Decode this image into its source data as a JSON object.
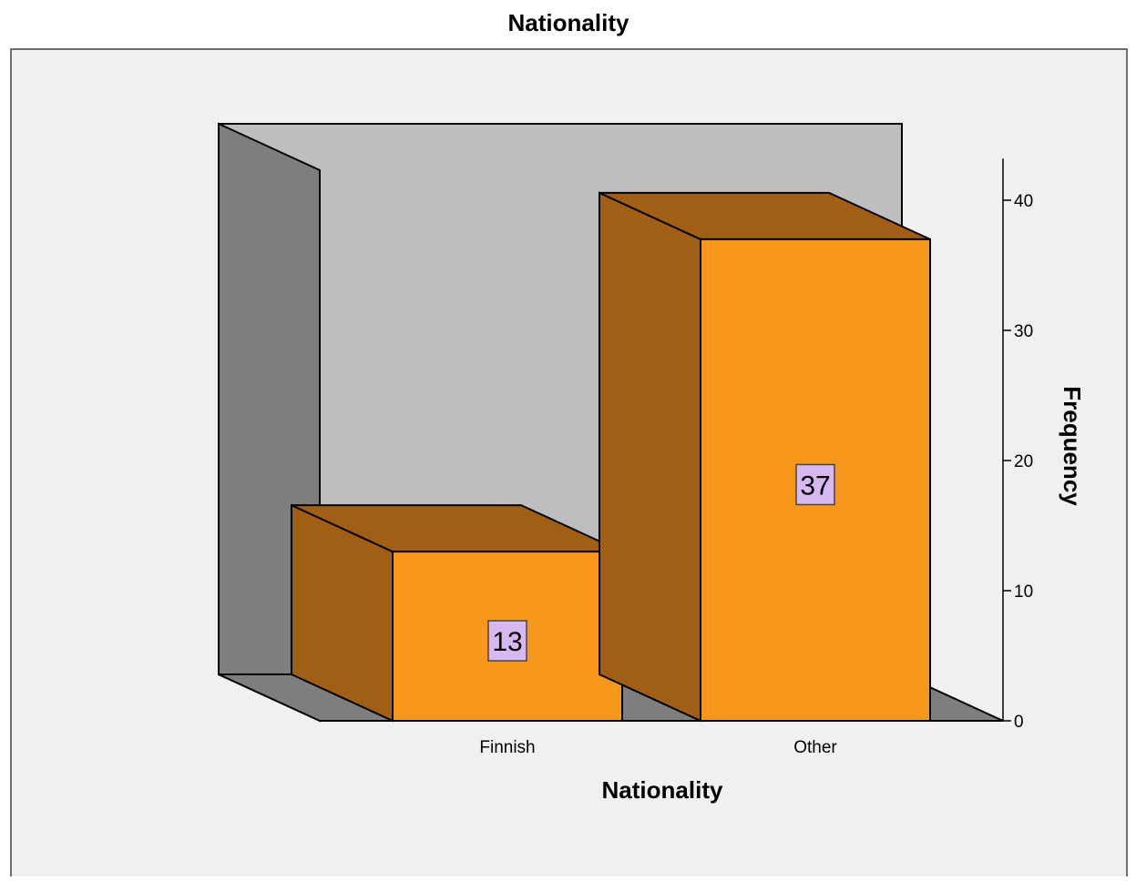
{
  "chart_data": {
    "type": "bar",
    "title": "Nationality",
    "xlabel": "Nationality",
    "ylabel": "Frequency",
    "categories": [
      "Finnish",
      "Other"
    ],
    "values": [
      13,
      37
    ],
    "data_labels": [
      "13",
      "37"
    ],
    "ylim": [
      0,
      42
    ],
    "yticks": [
      0,
      10,
      20,
      30,
      40
    ],
    "ytick_labels": [
      "0",
      "10",
      "20",
      "30",
      "40"
    ],
    "three_d": true,
    "grid": false,
    "legend": "none",
    "colors": {
      "bar_front": "#F7981D",
      "bar_side": "#A05F14",
      "bar_top": "#A05F14",
      "back_wall": "#BEBEBE",
      "side_wall": "#7E7E7E",
      "floor": "#7E7E7E",
      "frame_background": "#F0F0F0",
      "label_box": "#D8B8F0"
    }
  }
}
